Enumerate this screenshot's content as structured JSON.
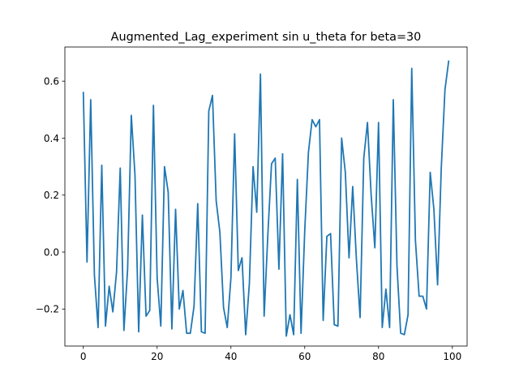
{
  "chart_data": {
    "type": "line",
    "title": "Augmented_Lag_experiment sin u_theta for beta=30",
    "xlabel": "",
    "ylabel": "",
    "xlim": [
      -5,
      104
    ],
    "ylim": [
      -0.33,
      0.72
    ],
    "xticks": [
      0,
      20,
      40,
      60,
      80,
      100
    ],
    "xtick_labels": [
      "0",
      "20",
      "40",
      "60",
      "80",
      "100"
    ],
    "yticks": [
      -0.2,
      0.0,
      0.2,
      0.4,
      0.6
    ],
    "ytick_labels": [
      "−0.2",
      "0.0",
      "0.2",
      "0.4",
      "0.6"
    ],
    "grid": false,
    "legend": "none",
    "color": "#1f77b4",
    "series": [
      {
        "x": [
          0,
          1,
          2,
          3,
          4,
          5,
          6,
          7,
          8,
          9,
          10,
          11,
          12,
          13,
          14,
          15,
          16,
          17,
          18,
          19,
          20,
          21,
          22,
          23,
          24,
          25,
          26,
          27,
          28,
          29,
          30,
          31,
          32,
          33,
          34,
          35,
          36,
          37,
          38,
          39,
          40,
          41,
          42,
          43,
          44,
          45,
          46,
          47,
          48,
          49,
          50,
          51,
          52,
          53,
          54,
          55,
          56,
          57,
          58,
          59,
          60,
          61,
          62,
          63,
          64,
          65,
          66,
          67,
          68,
          69,
          70,
          71,
          72,
          73,
          74,
          75,
          76,
          77,
          78,
          79,
          80,
          81,
          82,
          83,
          84,
          85,
          86,
          87,
          88,
          89,
          90,
          91,
          92,
          93,
          94,
          95,
          96,
          97,
          98,
          99
        ],
        "values": [
          0.56,
          -0.035,
          0.535,
          -0.08,
          -0.265,
          0.305,
          -0.26,
          -0.12,
          -0.21,
          -0.07,
          0.295,
          -0.275,
          -0.06,
          0.48,
          0.27,
          -0.28,
          0.13,
          -0.225,
          -0.205,
          0.515,
          -0.09,
          -0.26,
          0.3,
          0.21,
          -0.27,
          0.15,
          -0.2,
          -0.135,
          -0.285,
          -0.285,
          -0.19,
          0.17,
          -0.28,
          -0.285,
          0.495,
          0.55,
          0.18,
          0.07,
          -0.195,
          -0.265,
          -0.09,
          0.415,
          -0.065,
          -0.02,
          -0.29,
          -0.11,
          0.3,
          0.14,
          0.625,
          -0.225,
          0.06,
          0.31,
          0.33,
          -0.06,
          0.345,
          -0.295,
          -0.22,
          -0.29,
          0.255,
          -0.285,
          0.075,
          0.35,
          0.465,
          0.44,
          0.465,
          -0.24,
          0.055,
          0.065,
          -0.255,
          -0.26,
          0.4,
          0.28,
          -0.02,
          0.23,
          -0.025,
          -0.23,
          0.33,
          0.455,
          0.2,
          0.015,
          0.455,
          -0.265,
          -0.13,
          -0.265,
          0.535,
          -0.05,
          -0.285,
          -0.29,
          -0.22,
          0.645,
          0.04,
          -0.155,
          -0.155,
          -0.2,
          0.28,
          0.15,
          -0.115,
          0.295,
          0.57,
          0.67
        ]
      }
    ]
  }
}
